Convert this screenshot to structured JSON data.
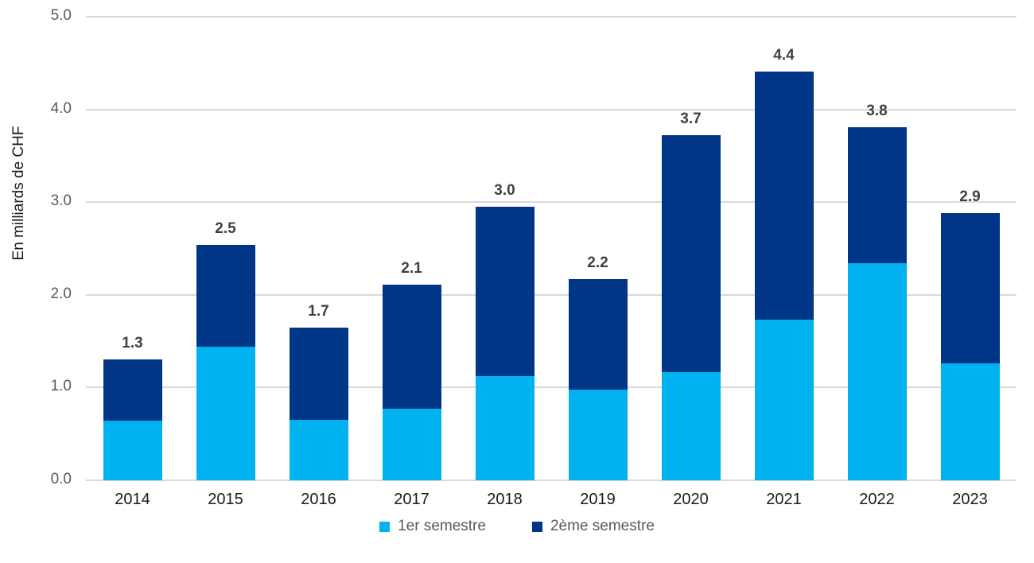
{
  "chart_data": {
    "type": "bar",
    "stacked": true,
    "ylabel": "En milliards de CHF",
    "ylim": [
      0,
      5
    ],
    "ytick_labels": [
      "0.0",
      "1.0",
      "2.0",
      "3.0",
      "4.0",
      "5.0"
    ],
    "grid": true,
    "legend_position": "bottom",
    "categories": [
      "2014",
      "2015",
      "2016",
      "2017",
      "2018",
      "2019",
      "2020",
      "2021",
      "2022",
      "2023"
    ],
    "series": [
      {
        "name": "1er semestre",
        "color": "#00b2f0",
        "values": [
          0.64,
          1.44,
          0.65,
          0.77,
          1.12,
          0.98,
          1.17,
          1.73,
          2.34,
          1.26
        ]
      },
      {
        "name": "2ème semestre",
        "color": "#003687",
        "values": [
          0.66,
          1.1,
          1.0,
          1.34,
          1.83,
          1.19,
          2.55,
          2.68,
          1.47,
          1.62
        ]
      }
    ],
    "total_labels": [
      "1.3",
      "2.5",
      "1.7",
      "2.1",
      "3.0",
      "2.2",
      "3.7",
      "4.4",
      "3.8",
      "2.9"
    ]
  },
  "colors": {
    "series_1": "#00b2f0",
    "series_2": "#003687",
    "gridline": "#d9d9d9",
    "tick_text": "#595959",
    "axis_text": "#1a1a1a",
    "value_label_text": "#404040",
    "legend_text": "#595959",
    "background": "#ffffff"
  }
}
